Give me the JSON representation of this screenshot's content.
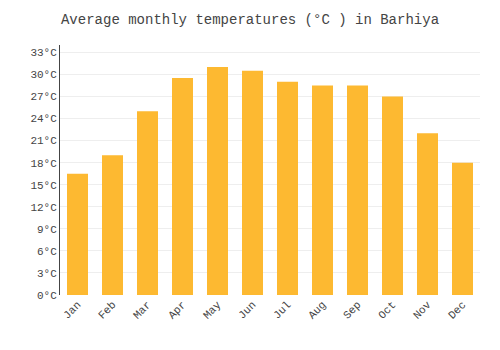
{
  "chart_data": {
    "type": "bar",
    "title": "Average monthly temperatures (°C ) in Barhiya",
    "categories": [
      "Jan",
      "Feb",
      "Mar",
      "Apr",
      "May",
      "Jun",
      "Jul",
      "Aug",
      "Sep",
      "Oct",
      "Nov",
      "Dec"
    ],
    "values": [
      16.5,
      19.0,
      25.0,
      29.5,
      31.0,
      30.5,
      29.0,
      28.5,
      28.5,
      27.0,
      22.0,
      18.0
    ],
    "color": "#FDB931",
    "ylim": [
      0,
      34
    ],
    "yticks": [
      {
        "value": 0,
        "label": "0°C"
      },
      {
        "value": 3,
        "label": "3°C"
      },
      {
        "value": 6,
        "label": "6°C"
      },
      {
        "value": 9,
        "label": "9°C"
      },
      {
        "value": 12,
        "label": "12°C"
      },
      {
        "value": 15,
        "label": "15°C"
      },
      {
        "value": 18,
        "label": "18°C"
      },
      {
        "value": 21,
        "label": "21°C"
      },
      {
        "value": 24,
        "label": "24°C"
      },
      {
        "value": 27,
        "label": "27°C"
      },
      {
        "value": 30,
        "label": "30°C"
      },
      {
        "value": 33,
        "label": "33°C"
      }
    ],
    "grid": true
  }
}
